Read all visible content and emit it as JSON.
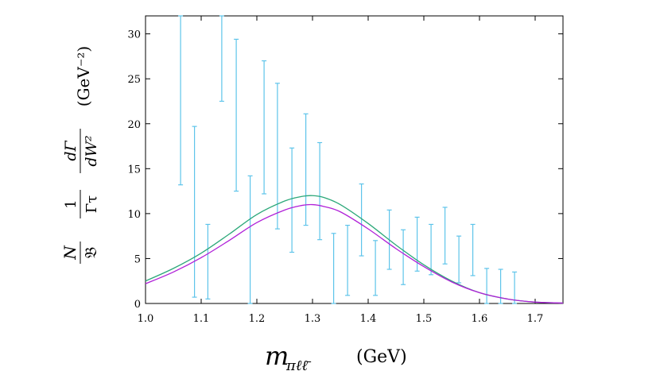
{
  "chart_data": {
    "type": "line",
    "title": "",
    "xlabel": {
      "symbol": "m",
      "subscript": "πℓℓ̄",
      "unit": "(GeV)"
    },
    "ylabel": {
      "ratio_n_num": "N",
      "ratio_n_den": "𝔅",
      "ratio_g_num": "1",
      "ratio_g_den": "Γτ",
      "deriv_num": "dΓ",
      "deriv_den": "dW²",
      "unit": "(GeV⁻²)"
    },
    "xlim": [
      1.0,
      1.75
    ],
    "ylim": [
      0,
      32
    ],
    "x_ticks": [
      1.0,
      1.1,
      1.2,
      1.3,
      1.4,
      1.5,
      1.6,
      1.7
    ],
    "x_tick_labels": [
      "1.0",
      "1.1",
      "1.2",
      "1.3",
      "1.4",
      "1.5",
      "1.6",
      "1.7"
    ],
    "y_ticks": [
      0,
      5,
      10,
      15,
      20,
      25,
      30
    ],
    "y_tick_labels": [
      "0",
      "5",
      "10",
      "15",
      "20",
      "25",
      "30"
    ],
    "colors": {
      "green": "#2ca87a",
      "magenta": "#b020d8",
      "errorbars": "#5ec4ea"
    },
    "series": [
      {
        "name": "green curve",
        "color": "#2ca87a",
        "x": [
          1.0,
          1.05,
          1.1,
          1.15,
          1.2,
          1.25,
          1.28,
          1.3,
          1.32,
          1.35,
          1.4,
          1.45,
          1.5,
          1.55,
          1.6,
          1.65,
          1.7,
          1.75
        ],
        "y": [
          2.5,
          3.9,
          5.6,
          7.7,
          9.9,
          11.4,
          11.9,
          12.0,
          11.8,
          11.0,
          8.9,
          6.5,
          4.3,
          2.5,
          1.2,
          0.5,
          0.15,
          0.05
        ]
      },
      {
        "name": "magenta curve",
        "color": "#b020d8",
        "x": [
          1.0,
          1.05,
          1.1,
          1.15,
          1.2,
          1.25,
          1.28,
          1.3,
          1.32,
          1.35,
          1.4,
          1.45,
          1.5,
          1.55,
          1.6,
          1.65,
          1.7,
          1.75
        ],
        "y": [
          2.2,
          3.5,
          5.1,
          7.0,
          9.0,
          10.4,
          10.9,
          11.0,
          10.8,
          10.2,
          8.3,
          6.1,
          4.1,
          2.4,
          1.2,
          0.5,
          0.15,
          0.05
        ]
      }
    ],
    "errorbars": [
      {
        "x": 1.063,
        "low": 13.2,
        "high": 32
      },
      {
        "x": 1.088,
        "low": 0.7,
        "high": 19.7
      },
      {
        "x": 1.112,
        "low": 0.5,
        "high": 8.8
      },
      {
        "x": 1.137,
        "low": 22.5,
        "high": 32
      },
      {
        "x": 1.163,
        "low": 12.5,
        "high": 29.4
      },
      {
        "x": 1.188,
        "low": 0.0,
        "high": 14.2
      },
      {
        "x": 1.213,
        "low": 12.2,
        "high": 27.0
      },
      {
        "x": 1.237,
        "low": 8.3,
        "high": 24.5
      },
      {
        "x": 1.263,
        "low": 5.7,
        "high": 17.3
      },
      {
        "x": 1.288,
        "low": 8.7,
        "high": 21.1
      },
      {
        "x": 1.313,
        "low": 7.1,
        "high": 17.9
      },
      {
        "x": 1.338,
        "low": 0.0,
        "high": 7.8
      },
      {
        "x": 1.363,
        "low": 0.9,
        "high": 8.7
      },
      {
        "x": 1.388,
        "low": 5.3,
        "high": 13.3
      },
      {
        "x": 1.413,
        "low": 0.9,
        "high": 7.0
      },
      {
        "x": 1.438,
        "low": 3.8,
        "high": 10.4
      },
      {
        "x": 1.463,
        "low": 2.1,
        "high": 8.2
      },
      {
        "x": 1.488,
        "low": 3.6,
        "high": 9.6
      },
      {
        "x": 1.513,
        "low": 3.2,
        "high": 8.8
      },
      {
        "x": 1.538,
        "low": 4.4,
        "high": 10.7
      },
      {
        "x": 1.563,
        "low": 2.3,
        "high": 7.5
      },
      {
        "x": 1.588,
        "low": 3.1,
        "high": 8.8
      },
      {
        "x": 1.613,
        "low": 0.0,
        "high": 3.9
      },
      {
        "x": 1.638,
        "low": 0.0,
        "high": 3.8
      },
      {
        "x": 1.663,
        "low": 0.0,
        "high": 3.5
      }
    ]
  }
}
